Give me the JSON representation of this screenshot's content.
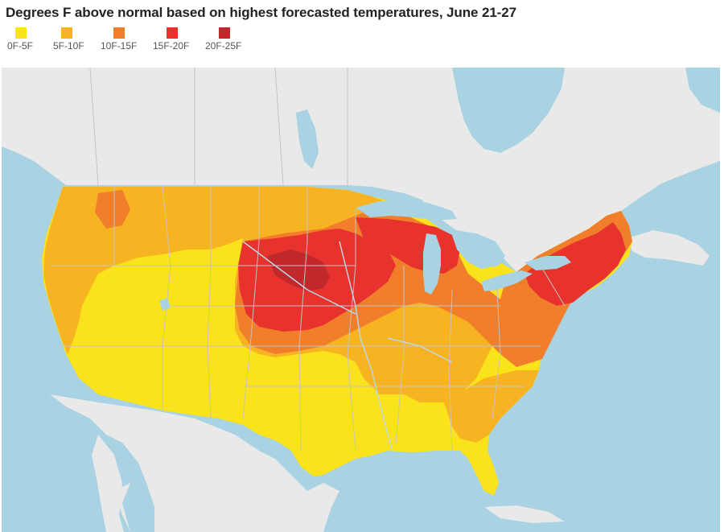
{
  "title": "Degrees F above normal based on highest forecasted temperatures, June 21-27",
  "legend": [
    {
      "label": "0F-5F",
      "color": "#fbe31b"
    },
    {
      "label": "5F-10F",
      "color": "#f8b322"
    },
    {
      "label": "10F-15F",
      "color": "#f07e2a"
    },
    {
      "label": "15F-20F",
      "color": "#e8322d"
    },
    {
      "label": "20F-25F",
      "color": "#c0282c"
    }
  ],
  "map_colors": {
    "water": "#a9d2e2",
    "land": "#e8e9e8",
    "border": "#c4c4c4",
    "rivers": "#b8d8e6"
  }
}
